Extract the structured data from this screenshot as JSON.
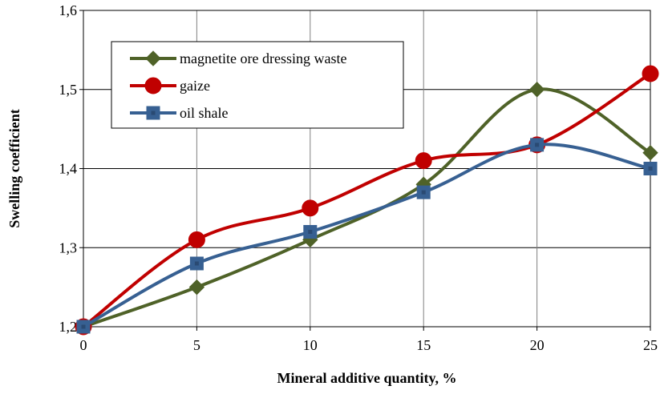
{
  "chart_data": {
    "type": "line",
    "title": "",
    "xlabel": "Mineral additive quantity, %",
    "ylabel": "Swelling coefficient",
    "x": [
      0,
      5,
      10,
      15,
      20,
      25
    ],
    "xlim": [
      0,
      25
    ],
    "ylim": [
      1.2,
      1.6
    ],
    "x_ticks": [
      "0",
      "5",
      "10",
      "15",
      "20",
      "25"
    ],
    "y_ticks": [
      "1,2",
      "1,3",
      "1,4",
      "1,5",
      "1,6"
    ],
    "grid": "horizontal and vertical",
    "legend_position": "top-left",
    "series": [
      {
        "name": "magnetite ore dressing waste",
        "values": [
          1.2,
          1.25,
          1.31,
          1.38,
          1.5,
          1.42
        ],
        "color": "#4f6228",
        "marker": "diamond"
      },
      {
        "name": "gaize",
        "values": [
          1.2,
          1.31,
          1.35,
          1.41,
          1.43,
          1.52
        ],
        "color": "#c00000",
        "marker": "circle"
      },
      {
        "name": "oil shale",
        "values": [
          1.2,
          1.28,
          1.32,
          1.37,
          1.43,
          1.4
        ],
        "color": "#376092",
        "marker": "square"
      }
    ]
  }
}
